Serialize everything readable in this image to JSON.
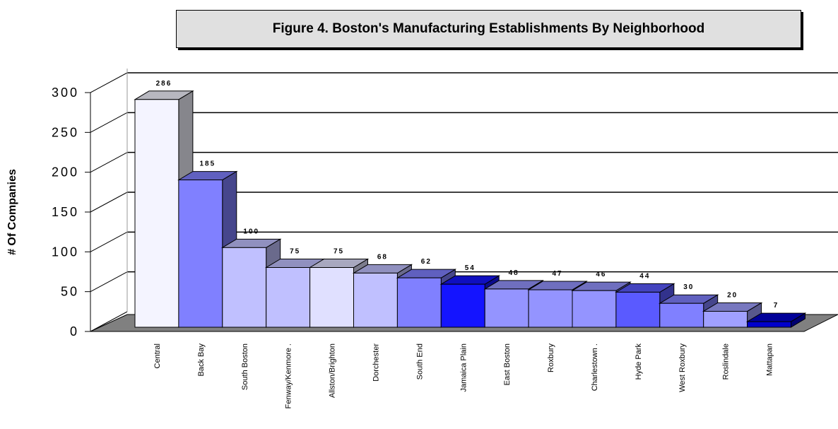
{
  "chart_data": {
    "type": "bar",
    "title": "Figure 4. Boston's Manufacturing Establishments By Neighborhood",
    "ylabel": "# Of Companies",
    "xlabel": "",
    "ylim": [
      0,
      300
    ],
    "yticks": [
      "0",
      "50",
      "100",
      "150",
      "200",
      "250",
      "300"
    ],
    "grid": true,
    "categories": [
      "Central",
      "Back Bay",
      "South Boston",
      "Fenway/Kenmore .",
      "Allston/Brighton",
      "Dorchester",
      "South End",
      "Jamaica Plain",
      "East Boston",
      "Roxbury",
      "Charlestown .",
      "Hyde Park",
      "West Roxbury",
      "Roslindale",
      "Mattapan"
    ],
    "values": [
      286,
      185,
      100,
      75,
      75,
      68,
      62,
      54,
      48,
      47,
      46,
      44,
      30,
      20,
      7
    ],
    "data_labels": [
      "286",
      "185",
      "100",
      "75",
      "75",
      "68",
      "62",
      "54",
      "48",
      "47",
      "46",
      "44",
      "30",
      "20",
      "7"
    ],
    "colors": [
      "#f4f4ff",
      "#8080ff",
      "#c0c0ff",
      "#c0c0ff",
      "#e0e0ff",
      "#c0c0ff",
      "#8080ff",
      "#1414ff",
      "#9494ff",
      "#9494ff",
      "#9494ff",
      "#5a5aff",
      "#8080ff",
      "#a0a0ff",
      "#0000cc"
    ],
    "floor_color": "#808080"
  }
}
